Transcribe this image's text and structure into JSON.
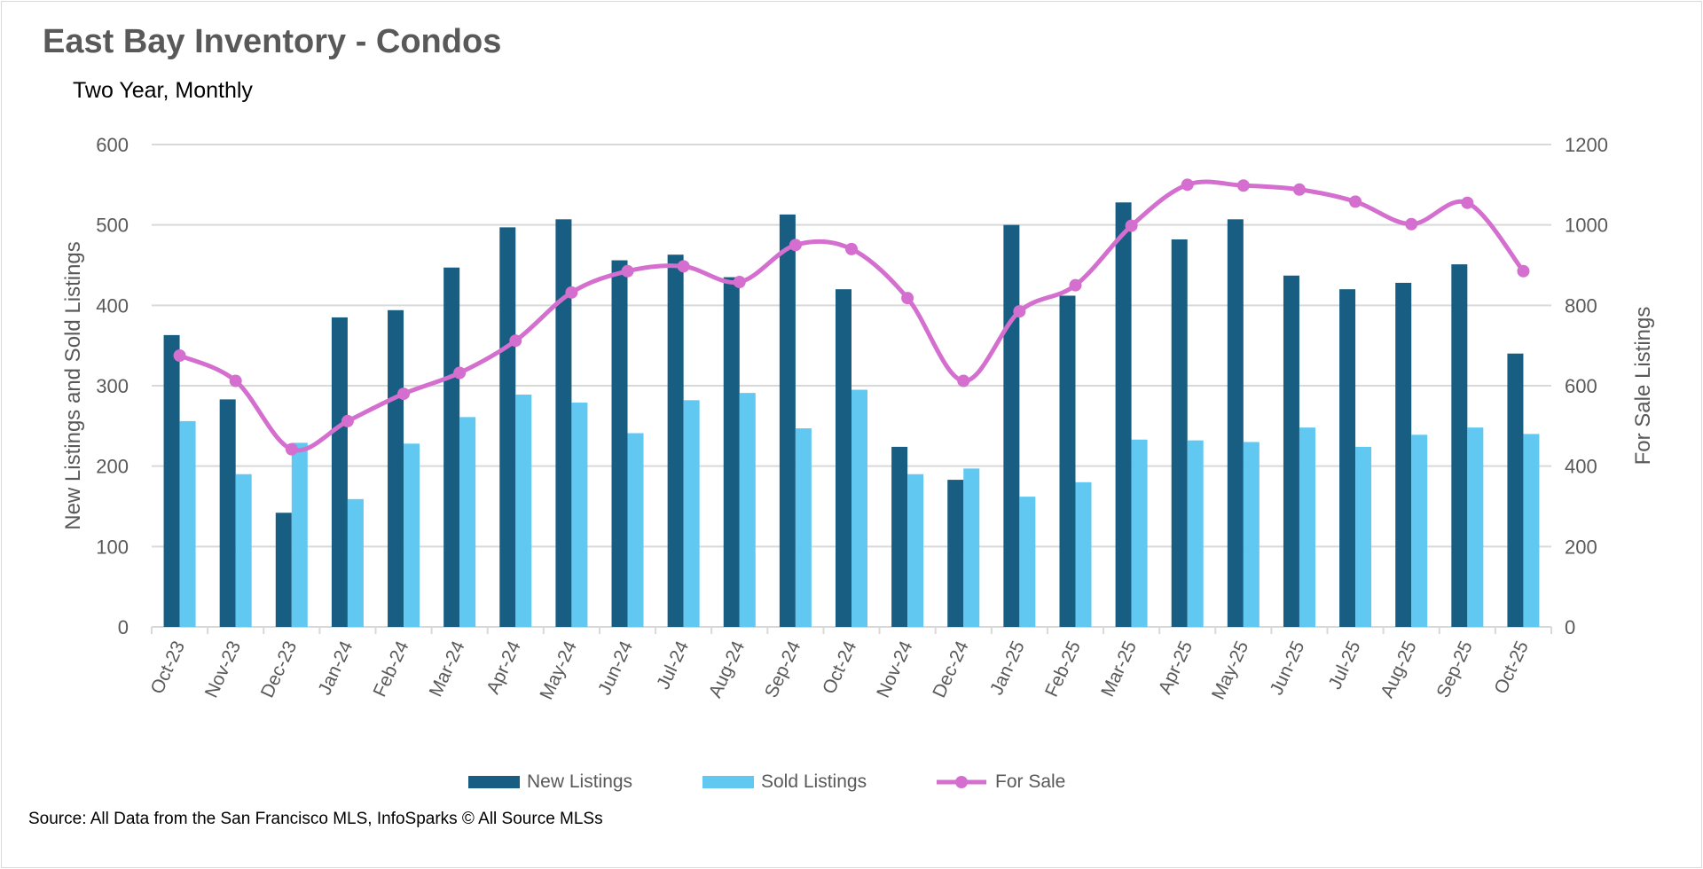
{
  "title": "East Bay Inventory - Condos",
  "subtitle": "Two Year, Monthly",
  "source": "Source: All Data from the San Francisco MLS, InfoSparks © All Source MLSs",
  "colors": {
    "new": "#175E82",
    "sold": "#61C8F2",
    "forsale": "#D46FCF",
    "grid": "#d9d9d9",
    "text": "#595959"
  },
  "chart_data": {
    "type": "bar",
    "categories": [
      "Oct-23",
      "Nov-23",
      "Dec-23",
      "Jan-24",
      "Feb-24",
      "Mar-24",
      "Apr-24",
      "May-24",
      "Jun-24",
      "Jul-24",
      "Aug-24",
      "Sep-24",
      "Oct-24",
      "Nov-24",
      "Dec-24",
      "Jan-25",
      "Feb-25",
      "Mar-25",
      "Apr-25",
      "May-25",
      "Jun-25",
      "Jul-25",
      "Aug-25",
      "Sep-25",
      "Oct-25"
    ],
    "series": [
      {
        "name": "New Listings",
        "type": "bar",
        "axis": "left",
        "values": [
          363,
          283,
          142,
          385,
          394,
          447,
          497,
          507,
          456,
          463,
          435,
          513,
          420,
          224,
          183,
          500,
          412,
          528,
          482,
          507,
          437,
          420,
          428,
          451,
          340
        ]
      },
      {
        "name": "Sold Listings",
        "type": "bar",
        "axis": "left",
        "values": [
          256,
          190,
          229,
          159,
          228,
          261,
          289,
          279,
          241,
          282,
          291,
          247,
          295,
          190,
          197,
          162,
          180,
          233,
          232,
          230,
          248,
          224,
          239,
          248,
          240
        ]
      },
      {
        "name": "For Sale",
        "type": "line",
        "axis": "right",
        "smooth": true,
        "markers": true,
        "values": [
          675,
          612,
          442,
          512,
          580,
          632,
          712,
          832,
          885,
          897,
          858,
          950,
          940,
          818,
          612,
          785,
          850,
          998,
          1100,
          1098,
          1088,
          1058,
          1002,
          1055,
          885
        ]
      }
    ],
    "ylabel": "New Listings and Sold Listings",
    "ylabel_right": "For Sale Listings",
    "ylim": [
      0,
      600
    ],
    "yticks": [
      0,
      100,
      200,
      300,
      400,
      500,
      600
    ],
    "ylim_right": [
      0,
      1200
    ],
    "yticks_right": [
      0,
      200,
      400,
      600,
      800,
      1000,
      1200
    ],
    "grid": true,
    "legend": "bottom"
  }
}
